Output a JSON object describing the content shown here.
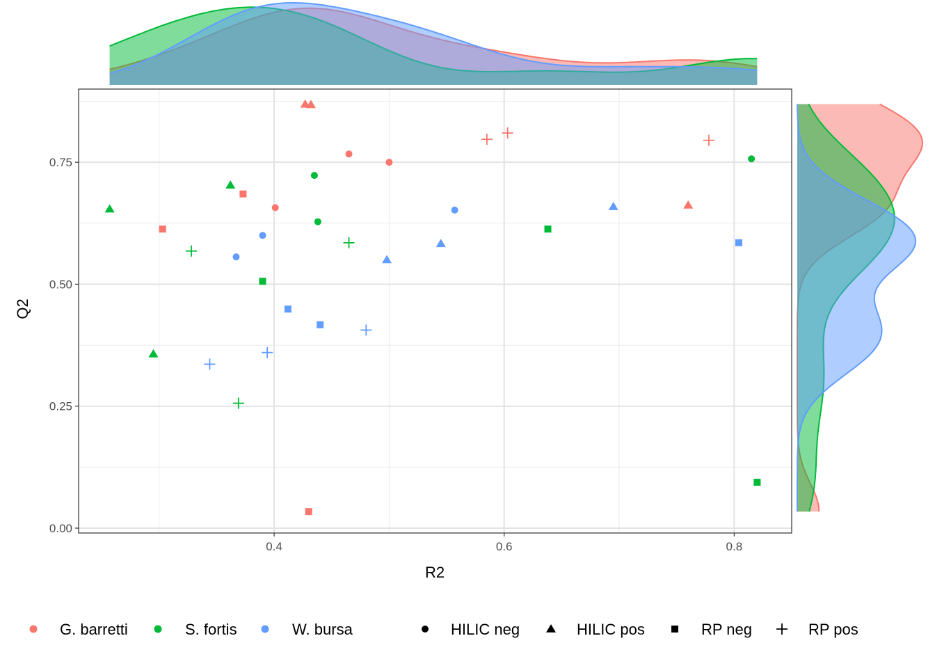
{
  "chart_data": {
    "type": "scatter",
    "title": "",
    "xlabel": "R2",
    "ylabel": "Q2",
    "xlim": [
      0.23,
      0.85
    ],
    "ylim": [
      -0.01,
      0.9
    ],
    "x_ticks": [
      0.4,
      0.6,
      0.8
    ],
    "x_tick_labels": [
      "0.4",
      "0.6",
      "0.8"
    ],
    "y_ticks": [
      0.0,
      0.25,
      0.5,
      0.75
    ],
    "y_tick_labels": [
      "0.00",
      "0.25",
      "0.50",
      "0.75"
    ],
    "grid": true,
    "marginal_density": {
      "top": true,
      "right": true
    },
    "legend_position": "bottom",
    "species": [
      {
        "name": "G. barretti",
        "color": "#F8766D"
      },
      {
        "name": "S. fortis",
        "color": "#00BA38"
      },
      {
        "name": "W. bursa",
        "color": "#619CFF"
      }
    ],
    "methods": [
      {
        "name": "HILIC neg",
        "shape": "circle"
      },
      {
        "name": "HILIC pos",
        "shape": "triangle"
      },
      {
        "name": "RP neg",
        "shape": "square"
      },
      {
        "name": "RP pos",
        "shape": "plus"
      }
    ],
    "points": [
      {
        "x": 0.465,
        "y": 0.767,
        "species": 0,
        "method": 0
      },
      {
        "x": 0.5,
        "y": 0.75,
        "species": 0,
        "method": 0
      },
      {
        "x": 0.401,
        "y": 0.657,
        "species": 0,
        "method": 0
      },
      {
        "x": 0.427,
        "y": 0.869,
        "species": 0,
        "method": 1
      },
      {
        "x": 0.432,
        "y": 0.868,
        "species": 0,
        "method": 1
      },
      {
        "x": 0.76,
        "y": 0.662,
        "species": 0,
        "method": 1
      },
      {
        "x": 0.373,
        "y": 0.685,
        "species": 0,
        "method": 2
      },
      {
        "x": 0.303,
        "y": 0.613,
        "species": 0,
        "method": 2
      },
      {
        "x": 0.43,
        "y": 0.034,
        "species": 0,
        "method": 2
      },
      {
        "x": 0.585,
        "y": 0.797,
        "species": 0,
        "method": 3
      },
      {
        "x": 0.603,
        "y": 0.81,
        "species": 0,
        "method": 3
      },
      {
        "x": 0.778,
        "y": 0.795,
        "species": 0,
        "method": 3
      },
      {
        "x": 0.435,
        "y": 0.723,
        "species": 1,
        "method": 0
      },
      {
        "x": 0.438,
        "y": 0.628,
        "species": 1,
        "method": 0
      },
      {
        "x": 0.815,
        "y": 0.757,
        "species": 1,
        "method": 0
      },
      {
        "x": 0.257,
        "y": 0.654,
        "species": 1,
        "method": 1
      },
      {
        "x": 0.362,
        "y": 0.703,
        "species": 1,
        "method": 1
      },
      {
        "x": 0.295,
        "y": 0.357,
        "species": 1,
        "method": 1
      },
      {
        "x": 0.39,
        "y": 0.506,
        "species": 1,
        "method": 2
      },
      {
        "x": 0.638,
        "y": 0.613,
        "species": 1,
        "method": 2
      },
      {
        "x": 0.82,
        "y": 0.094,
        "species": 1,
        "method": 2
      },
      {
        "x": 0.328,
        "y": 0.568,
        "species": 1,
        "method": 3
      },
      {
        "x": 0.465,
        "y": 0.585,
        "species": 1,
        "method": 3
      },
      {
        "x": 0.369,
        "y": 0.256,
        "species": 1,
        "method": 3
      },
      {
        "x": 0.367,
        "y": 0.556,
        "species": 2,
        "method": 0
      },
      {
        "x": 0.39,
        "y": 0.6,
        "species": 2,
        "method": 0
      },
      {
        "x": 0.557,
        "y": 0.652,
        "species": 2,
        "method": 0
      },
      {
        "x": 0.498,
        "y": 0.55,
        "species": 2,
        "method": 1
      },
      {
        "x": 0.545,
        "y": 0.583,
        "species": 2,
        "method": 1
      },
      {
        "x": 0.695,
        "y": 0.659,
        "species": 2,
        "method": 1
      },
      {
        "x": 0.412,
        "y": 0.449,
        "species": 2,
        "method": 2
      },
      {
        "x": 0.44,
        "y": 0.417,
        "species": 2,
        "method": 2
      },
      {
        "x": 0.804,
        "y": 0.585,
        "species": 2,
        "method": 2
      },
      {
        "x": 0.344,
        "y": 0.336,
        "species": 2,
        "method": 3
      },
      {
        "x": 0.394,
        "y": 0.36,
        "species": 2,
        "method": 3
      },
      {
        "x": 0.48,
        "y": 0.406,
        "species": 2,
        "method": 3
      }
    ]
  }
}
